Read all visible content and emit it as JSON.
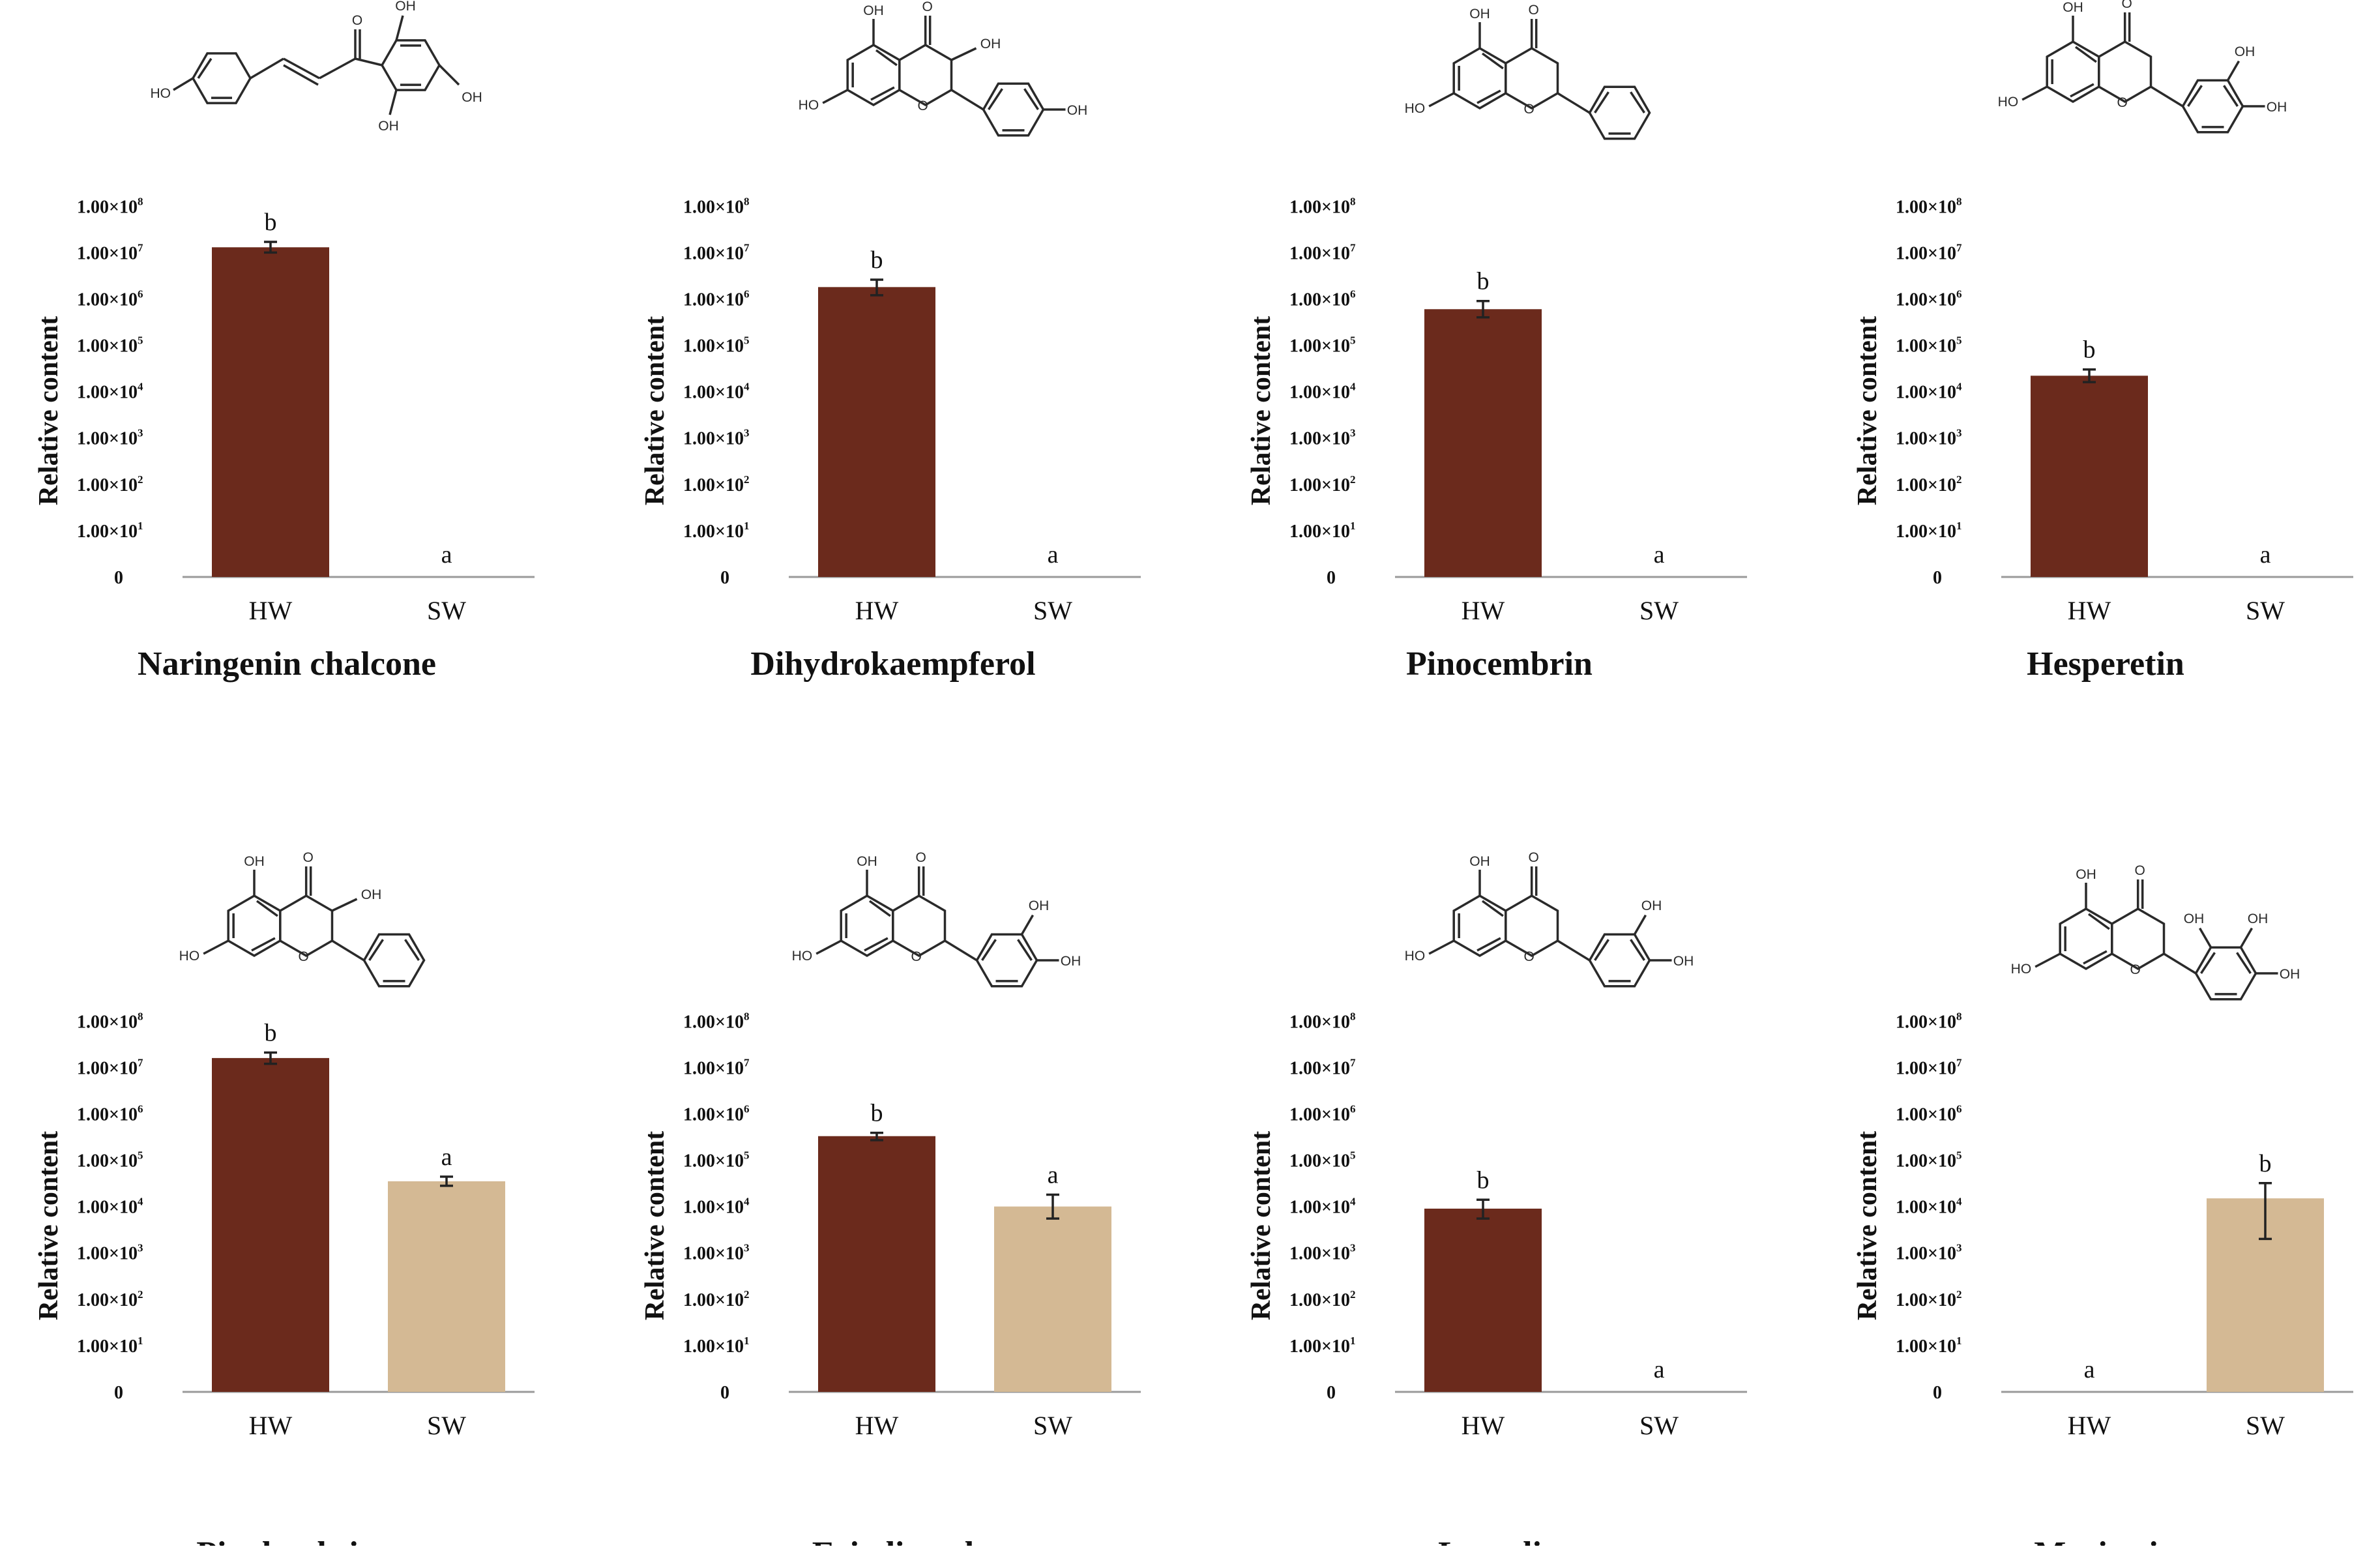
{
  "chart_data": [
    {
      "type": "bar",
      "title": "Naringenin chalcone",
      "ylabel": "Relative content",
      "yscale": "log",
      "categories": [
        "HW",
        "SW"
      ],
      "values": [
        13000000,
        0
      ],
      "error_low": [
        10000000,
        0
      ],
      "error_high": [
        17000000,
        0
      ],
      "significance": [
        "b",
        "a"
      ],
      "colors": [
        "#6b2a1c",
        "#d4b994"
      ],
      "y_ticks": [
        "0",
        "1.00×10",
        "1.00×10",
        "1.00×10",
        "1.00×10",
        "1.00×10",
        "1.00×10",
        "1.00×10",
        "1.00×10"
      ],
      "y_tick_exponents": [
        "",
        "1",
        "2",
        "3",
        "4",
        "5",
        "6",
        "7",
        "8"
      ]
    },
    {
      "type": "bar",
      "title": "Dihydrokaempferol",
      "ylabel": "Relative content",
      "yscale": "log",
      "categories": [
        "HW",
        "SW"
      ],
      "values": [
        1800000,
        0
      ],
      "error_low": [
        1200000,
        0
      ],
      "error_high": [
        2600000,
        0
      ],
      "significance": [
        "b",
        "a"
      ],
      "colors": [
        "#6b2a1c",
        "#d4b994"
      ],
      "y_ticks": [
        "0",
        "1.00×10",
        "1.00×10",
        "1.00×10",
        "1.00×10",
        "1.00×10",
        "1.00×10",
        "1.00×10",
        "1.00×10"
      ],
      "y_tick_exponents": [
        "",
        "1",
        "2",
        "3",
        "4",
        "5",
        "6",
        "7",
        "8"
      ]
    },
    {
      "type": "bar",
      "title": "Pinocembrin",
      "ylabel": "Relative content",
      "yscale": "log",
      "categories": [
        "HW",
        "SW"
      ],
      "values": [
        600000,
        0
      ],
      "error_low": [
        400000,
        0
      ],
      "error_high": [
        900000,
        0
      ],
      "significance": [
        "b",
        "a"
      ],
      "colors": [
        "#6b2a1c",
        "#d4b994"
      ],
      "y_ticks": [
        "0",
        "1.00×10",
        "1.00×10",
        "1.00×10",
        "1.00×10",
        "1.00×10",
        "1.00×10",
        "1.00×10",
        "1.00×10"
      ],
      "y_tick_exponents": [
        "",
        "1",
        "2",
        "3",
        "4",
        "5",
        "6",
        "7",
        "8"
      ]
    },
    {
      "type": "bar",
      "title": "Hesperetin",
      "ylabel": "Relative content",
      "yscale": "log",
      "categories": [
        "HW",
        "SW"
      ],
      "values": [
        22000,
        0
      ],
      "error_low": [
        16000,
        0
      ],
      "error_high": [
        30000,
        0
      ],
      "significance": [
        "b",
        "a"
      ],
      "colors": [
        "#6b2a1c",
        "#d4b994"
      ],
      "y_ticks": [
        "0",
        "1.00×10",
        "1.00×10",
        "1.00×10",
        "1.00×10",
        "1.00×10",
        "1.00×10",
        "1.00×10",
        "1.00×10"
      ],
      "y_tick_exponents": [
        "",
        "1",
        "2",
        "3",
        "4",
        "5",
        "6",
        "7",
        "8"
      ]
    },
    {
      "type": "bar",
      "title": "Pinobanksin",
      "ylabel": "Relative content",
      "yscale": "log",
      "categories": [
        "HW",
        "SW"
      ],
      "values": [
        16000000,
        35000
      ],
      "error_low": [
        12000000,
        28000
      ],
      "error_high": [
        21000000,
        44000
      ],
      "significance": [
        "b",
        "a"
      ],
      "colors": [
        "#6b2a1c",
        "#d4b994"
      ],
      "y_ticks": [
        "0",
        "1.00×10",
        "1.00×10",
        "1.00×10",
        "1.00×10",
        "1.00×10",
        "1.00×10",
        "1.00×10",
        "1.00×10"
      ],
      "y_tick_exponents": [
        "",
        "1",
        "2",
        "3",
        "4",
        "5",
        "6",
        "7",
        "8"
      ]
    },
    {
      "type": "bar",
      "title": "Eriodictyol",
      "ylabel": "Relative content",
      "yscale": "log",
      "categories": [
        "HW",
        "SW"
      ],
      "values": [
        330000,
        10000
      ],
      "error_low": [
        270000,
        5500
      ],
      "error_high": [
        390000,
        18000
      ],
      "significance": [
        "b",
        "a"
      ],
      "colors": [
        "#6b2a1c",
        "#d4b994"
      ],
      "y_ticks": [
        "0",
        "1.00×10",
        "1.00×10",
        "1.00×10",
        "1.00×10",
        "1.00×10",
        "1.00×10",
        "1.00×10",
        "1.00×10"
      ],
      "y_tick_exponents": [
        "",
        "1",
        "2",
        "3",
        "4",
        "5",
        "6",
        "7",
        "8"
      ]
    },
    {
      "type": "bar",
      "title": "Luteolin",
      "ylabel": "Relative content",
      "yscale": "log",
      "categories": [
        "HW",
        "SW"
      ],
      "values": [
        9000,
        0
      ],
      "error_low": [
        5500,
        0
      ],
      "error_high": [
        14000,
        0
      ],
      "significance": [
        "b",
        "a"
      ],
      "colors": [
        "#6b2a1c",
        "#d4b994"
      ],
      "y_ticks": [
        "0",
        "1.00×10",
        "1.00×10",
        "1.00×10",
        "1.00×10",
        "1.00×10",
        "1.00×10",
        "1.00×10",
        "1.00×10"
      ],
      "y_tick_exponents": [
        "",
        "1",
        "2",
        "3",
        "4",
        "5",
        "6",
        "7",
        "8"
      ]
    },
    {
      "type": "bar",
      "title": "Myricetin",
      "ylabel": "Relative content",
      "yscale": "log",
      "categories": [
        "HW",
        "SW"
      ],
      "values": [
        0,
        15000
      ],
      "error_low": [
        0,
        2000
      ],
      "error_high": [
        0,
        32000
      ],
      "significance": [
        "a",
        "b"
      ],
      "colors": [
        "#6b2a1c",
        "#d4b994"
      ],
      "y_ticks": [
        "0",
        "1.00×10",
        "1.00×10",
        "1.00×10",
        "1.00×10",
        "1.00×10",
        "1.00×10",
        "1.00×10",
        "1.00×10"
      ],
      "y_tick_exponents": [
        "",
        "1",
        "2",
        "3",
        "4",
        "5",
        "6",
        "7",
        "8"
      ]
    }
  ],
  "molecule_labels": {
    "hydroxyl": "OH",
    "hydroxyl_left": "HO",
    "oxygen": "O"
  }
}
